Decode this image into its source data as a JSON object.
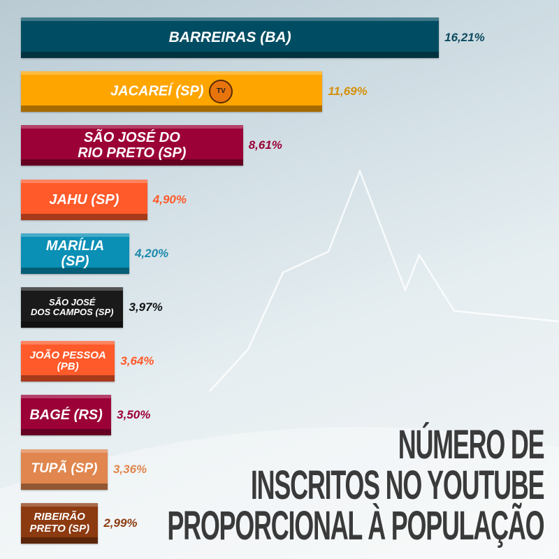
{
  "chart_data": {
    "type": "bar",
    "orientation": "horizontal",
    "title": "NÚMERO DE INSCRITOS NO YOUTUBE PROPORCIONAL À POPULAÇÃO",
    "title_lines": [
      "NÚMERO DE",
      "INSCRITOS NO YOUTUBE",
      "PROPORCIONAL À POPULAÇÃO"
    ],
    "categories": [
      "BARREIRAS (BA)",
      "JACAREÍ (SP)",
      "SÃO JOSÉ DO RIO PRETO (SP)",
      "JAHU (SP)",
      "MARÍLIA (SP)",
      "SÃO JOSÉ DOS CAMPOS (SP)",
      "JOÃO PESSOA (PB)",
      "BAGÉ (RS)",
      "TUPÃ (SP)",
      "RIBEIRÃO PRETO (SP)"
    ],
    "label_lines": [
      [
        "BARREIRAS (BA)"
      ],
      [
        "JACAREÍ (SP)"
      ],
      [
        "SÃO JOSÉ DO",
        "RIO PRETO (SP)"
      ],
      [
        "JAHU (SP)"
      ],
      [
        "MARÍLIA",
        "(SP)"
      ],
      [
        "SÃO JOSÉ",
        "DOS CAMPOS (SP)"
      ],
      [
        "JOÃO PESSOA",
        "(PB)"
      ],
      [
        "BAGÉ (RS)"
      ],
      [
        "TUPÃ (SP)"
      ],
      [
        "RIBEIRÃO",
        "PRETO (SP)"
      ]
    ],
    "values": [
      16.21,
      11.69,
      8.61,
      4.9,
      4.2,
      3.97,
      3.64,
      3.5,
      3.36,
      2.99
    ],
    "value_labels": [
      "16,21%",
      "11,69%",
      "8,61%",
      "4,90%",
      "4,20%",
      "3,97%",
      "3,64%",
      "3,50%",
      "3,36%",
      "2,99%"
    ],
    "unit": "%",
    "bar_colors": [
      "#004d63",
      "#ffa500",
      "#9b0036",
      "#ff5a2a",
      "#0a8fb5",
      "#1a1a1a",
      "#ff5a2a",
      "#9b0036",
      "#e0864e",
      "#8c3a10"
    ],
    "value_colors": [
      "#0b4a5e",
      "#d4900a",
      "#9b0036",
      "#ff5a2a",
      "#1b88ad",
      "#111111",
      "#ff5a2a",
      "#9b0036",
      "#e0864e",
      "#8c3a10"
    ],
    "grid": false,
    "legend": "none",
    "logo": {
      "text": "TV",
      "position": "inside-bar-2"
    }
  }
}
